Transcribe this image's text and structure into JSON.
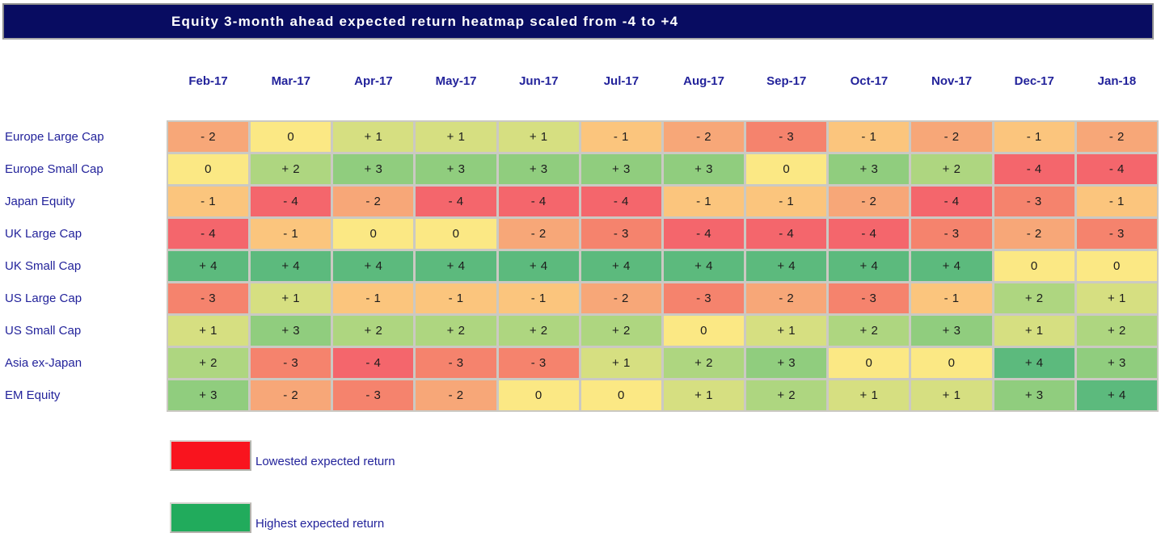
{
  "title_bar": {
    "text": "Equity 3-month ahead expected return heatmap scaled from -4 to +4"
  },
  "chart_data": {
    "type": "heatmap",
    "title": "Equity 3-month ahead expected return heatmap scaled from -4 to +4",
    "scale_min": -4,
    "scale_max": 4,
    "columns": [
      "Feb-17",
      "Mar-17",
      "Apr-17",
      "May-17",
      "Jun-17",
      "Jul-17",
      "Aug-17",
      "Sep-17",
      "Oct-17",
      "Nov-17",
      "Dec-17",
      "Jan-18"
    ],
    "rows": [
      "Europe Large Cap",
      "Europe Small Cap",
      "Japan Equity",
      "UK Large Cap",
      "UK Small Cap",
      "US Large Cap",
      "US Small Cap",
      "Asia ex-Japan",
      "EM Equity"
    ],
    "values": [
      [
        -2,
        0,
        1,
        1,
        1,
        -1,
        -2,
        -3,
        -1,
        -2,
        -1,
        -2
      ],
      [
        0,
        2,
        3,
        3,
        3,
        3,
        3,
        0,
        3,
        2,
        -4,
        -4
      ],
      [
        -1,
        -4,
        -2,
        -4,
        -4,
        -4,
        -1,
        -1,
        -2,
        -4,
        -3,
        -1
      ],
      [
        -4,
        -1,
        0,
        0,
        -2,
        -3,
        -4,
        -4,
        -4,
        -3,
        -2,
        -3
      ],
      [
        4,
        4,
        4,
        4,
        4,
        4,
        4,
        4,
        4,
        4,
        0,
        0
      ],
      [
        -3,
        1,
        -1,
        -1,
        -1,
        -2,
        -3,
        -2,
        -3,
        -1,
        2,
        1
      ],
      [
        1,
        3,
        2,
        2,
        2,
        2,
        0,
        1,
        2,
        3,
        1,
        2
      ],
      [
        2,
        -3,
        -4,
        -3,
        -3,
        1,
        2,
        3,
        0,
        0,
        4,
        3
      ],
      [
        3,
        -2,
        -3,
        -2,
        0,
        0,
        1,
        2,
        1,
        1,
        3,
        4
      ]
    ],
    "color_map": {
      "-4": "#f4666c",
      "-3": "#f5836d",
      "-2": "#f7a778",
      "-1": "#fbc57d",
      "0": "#fbe884",
      "1": "#d6df81",
      "2": "#aed680",
      "3": "#90cd7e",
      "4": "#5cba7d"
    }
  },
  "legend": [
    {
      "label": "Lowested expected return",
      "color": "#f9141e"
    },
    {
      "label": "Highest expected return",
      "color": "#21ab5c"
    }
  ],
  "colors": {
    "title_bar_bg": "#080c61",
    "navy_text": "#23239b",
    "grid_gap": "#cbc9c3",
    "cell_text": "#1c1c1c"
  }
}
